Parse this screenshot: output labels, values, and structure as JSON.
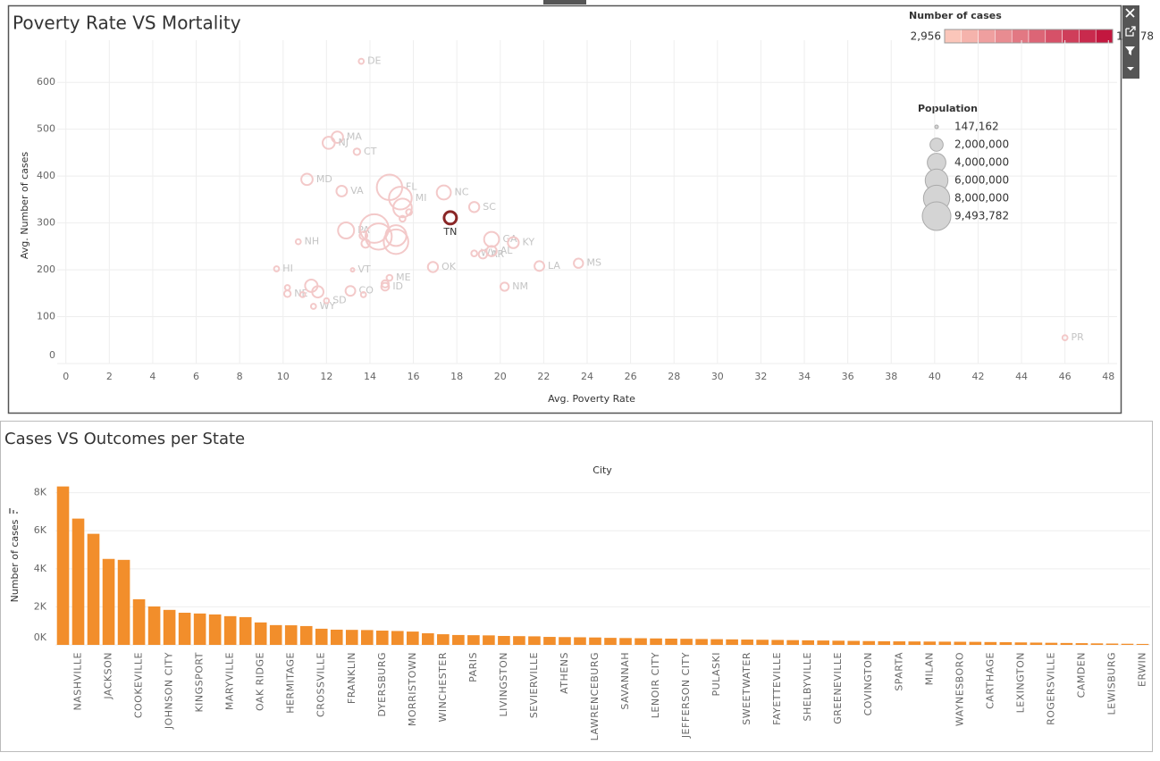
{
  "chart_data": [
    {
      "type": "scatter",
      "title": "Poverty Rate VS Mortality",
      "x_label": "Avg. Poverty Rate",
      "y_label": "Avg. Number of cases",
      "labels": [
        "DE",
        "MA",
        "NJ",
        "CT",
        "MD",
        "FL",
        "VA",
        "MI",
        "NC",
        "SC",
        "TN",
        "GA",
        "PA",
        "VT",
        "NH",
        "WV",
        "AR",
        "AL",
        "KY",
        "ME",
        "OK",
        "LA",
        "MS",
        "HI",
        "NE",
        "WY",
        "SD",
        "CO",
        "ID",
        "NM",
        "PR",
        null,
        null,
        null,
        null,
        null,
        null,
        null,
        null,
        null,
        null,
        null,
        null,
        null,
        null,
        null
      ],
      "x": [
        13.6,
        12.5,
        12.1,
        13.4,
        11.1,
        14.9,
        12.7,
        15.4,
        17.4,
        18.8,
        17.7,
        19.6,
        12.9,
        13.2,
        10.7,
        18.8,
        19.2,
        19.6,
        20.6,
        14.9,
        16.9,
        21.8,
        23.6,
        9.7,
        10.2,
        11.4,
        12.0,
        13.1,
        14.7,
        20.2,
        46.0,
        14.2,
        14.4,
        15.2,
        15.2,
        15.5,
        11.3,
        11.6,
        13.7,
        14.7,
        13.8,
        13.7,
        15.5,
        15.8,
        10.2,
        10.9
      ],
      "y": [
        645,
        483,
        471,
        452,
        393,
        376,
        368,
        353,
        365,
        334,
        311,
        265,
        284,
        200,
        260,
        235,
        233,
        240,
        258,
        183,
        206,
        208,
        214,
        202,
        149,
        122,
        134,
        155,
        164,
        164,
        55,
        288,
        271,
        260,
        273,
        332,
        166,
        153,
        147,
        170,
        256,
        273,
        309,
        323,
        162,
        147
      ],
      "size": [
        300000,
        1500000,
        1700000,
        500000,
        1500000,
        7500000,
        1300000,
        6000000,
        2300000,
        1200000,
        1800000,
        2600000,
        3000000,
        147162,
        300000,
        400000,
        800000,
        1200000,
        1400000,
        400000,
        1200000,
        1100000,
        1000000,
        300000,
        500000,
        300000,
        300000,
        1100000,
        700000,
        800000,
        300000,
        9493782,
        8000000,
        7000000,
        5000000,
        4000000,
        1800000,
        1500000,
        300000,
        600000,
        800000,
        700000,
        400000,
        400000,
        300000,
        300000
      ],
      "colors": [
        "#f3c9c9",
        "#f3c9c9",
        "#f3c9c9",
        "#f3c9c9",
        "#f3c9c9",
        "#f3c9c9",
        "#f3c9c9",
        "#f3c9c9",
        "#f3c9c9",
        "#f3c9c9",
        "#8a2626",
        "#f3c9c9",
        "#f3c9c9",
        "#f3c9c9",
        "#f3c9c9",
        "#f3c9c9",
        "#f3c9c9",
        "#f3c9c9",
        "#f3c9c9",
        "#f3c9c9",
        "#f3c9c9",
        "#f3c9c9",
        "#f3c9c9",
        "#f3c9c9",
        "#f3c9c9",
        "#f3c9c9",
        "#f3c9c9",
        "#f3c9c9",
        "#f3c9c9",
        "#f3c9c9",
        "#f3c9c9",
        "#f3c9c9",
        "#f3c9c9",
        "#f3c9c9",
        "#f3c9c9",
        "#f3c9c9",
        "#f3c9c9",
        "#f3c9c9",
        "#f3c9c9",
        "#f3c9c9",
        "#f3c9c9",
        "#f3c9c9",
        "#f3c9c9",
        "#f3c9c9",
        "#f3c9c9",
        "#f3c9c9"
      ],
      "xlim": [
        -0.4,
        48.4
      ],
      "xticks": [
        0,
        2,
        4,
        6,
        8,
        10,
        12,
        14,
        16,
        18,
        20,
        22,
        24,
        26,
        28,
        30,
        32,
        34,
        36,
        38,
        40,
        42,
        44,
        46,
        48
      ],
      "ylim": [
        0,
        690
      ],
      "yticks": [
        0,
        100,
        200,
        300,
        400,
        500,
        600
      ],
      "grid": true,
      "size_legend": {
        "title": "Population",
        "values": [
          {
            "value": 147162,
            "label": "147,162"
          },
          {
            "value": 2000000,
            "label": "2,000,000"
          },
          {
            "value": 4000000,
            "label": "4,000,000"
          },
          {
            "value": 6000000,
            "label": "6,000,000"
          },
          {
            "value": 8000000,
            "label": "8,000,000"
          },
          {
            "value": 9493782,
            "label": "9,493,782"
          }
        ]
      },
      "color_legend": {
        "title": "Number of cases",
        "min": {
          "value": 2956,
          "label": "2,956"
        },
        "max": {
          "value": 14078,
          "label": "14,078"
        },
        "colors": [
          "#fbc6ba",
          "#c3173f"
        ]
      }
    },
    {
      "type": "bar",
      "title": "Cases VS Outcomes per State",
      "x_label": "City",
      "y_label": "Number of cases",
      "categories": [
        null,
        "NASHVILLE",
        null,
        "JACKSON",
        null,
        "COOKEVILLE",
        null,
        "JOHNSON CITY",
        null,
        "KINGSPORT",
        null,
        "MARYVILLE",
        null,
        "OAK RIDGE",
        null,
        "HERMITAGE",
        null,
        "CROSSVILLE",
        null,
        "FRANKLIN",
        null,
        "DYERSBURG",
        null,
        "MORRISTOWN",
        null,
        "WINCHESTER",
        null,
        "PARIS",
        null,
        "LIVINGSTON",
        null,
        "SEVIERVILLE",
        null,
        "ATHENS",
        null,
        "LAWRENCEBURG",
        null,
        "SAVANNAH",
        null,
        "LENOIR CITY",
        null,
        "JEFFERSON CITY",
        null,
        "PULASKI",
        null,
        "SWEETWATER",
        null,
        "FAYETTEVILLE",
        null,
        "SHELBYVILLE",
        null,
        "GREENEVILLE",
        null,
        "COVINGTON",
        null,
        "SPARTA",
        null,
        "MILAN",
        null,
        "WAYNESBORO",
        null,
        "CARTHAGE",
        null,
        "LEXINGTON",
        null,
        "ROGERSVILLE",
        null,
        "CAMDEN",
        null,
        "LEWISBURG",
        null,
        "ERWIN"
      ],
      "values": [
        8330,
        6640,
        5840,
        4520,
        4470,
        2400,
        2020,
        1840,
        1690,
        1650,
        1600,
        1510,
        1460,
        1180,
        1040,
        1030,
        990,
        850,
        800,
        790,
        780,
        750,
        730,
        700,
        610,
        560,
        520,
        510,
        500,
        470,
        460,
        450,
        420,
        410,
        400,
        390,
        370,
        360,
        350,
        340,
        330,
        320,
        310,
        300,
        290,
        280,
        270,
        260,
        250,
        240,
        230,
        220,
        210,
        200,
        190,
        185,
        180,
        175,
        170,
        165,
        160,
        150,
        140,
        130,
        120,
        110,
        100,
        90,
        80,
        70,
        60,
        50
      ],
      "color": "#f28e2b",
      "ylim": [
        0,
        8500
      ],
      "yticks": [
        {
          "value": 0,
          "label": "0K"
        },
        {
          "value": 2000,
          "label": "2K"
        },
        {
          "value": 4000,
          "label": "4K"
        },
        {
          "value": 6000,
          "label": "6K"
        },
        {
          "value": 8000,
          "label": "8K"
        }
      ],
      "grid": true
    }
  ]
}
